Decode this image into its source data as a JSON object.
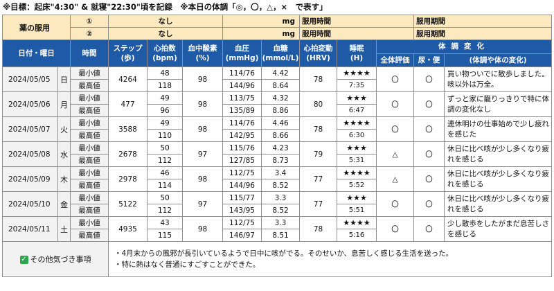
{
  "goal": "※目標：起床\"4:30\" & 就寝\"22:30\"頃を記録　※本日の体調「◎，〇，△，×　で表す」",
  "meds": {
    "label": "薬の服用",
    "rows": [
      {
        "num": "①",
        "name": "なし",
        "unit": "mg",
        "time_label": "服用時間",
        "period_label": "服用期間"
      },
      {
        "num": "②",
        "name": "なし",
        "unit": "mg",
        "time_label": "服用時間",
        "period_label": "服用期間"
      }
    ]
  },
  "headers": {
    "date": "日付・曜日",
    "time": "時間",
    "steps": "ステップ",
    "steps_unit": "(歩)",
    "hr": "心拍数",
    "hr_unit": "(bpm)",
    "spo2": "血中酸素",
    "spo2_unit": "(%)",
    "bp": "血圧",
    "bp_unit": "(mmHg)",
    "sugar": "血糖",
    "sugar_unit": "(mmol/L)",
    "hrv": "心拍変動",
    "hrv_unit": "(HRV)",
    "sleep": "睡眠",
    "sleep_unit": "(H)",
    "condition": "体調変化",
    "overall": "全体評価",
    "toilet": "尿・便",
    "notes": "(体調や体の変化)"
  },
  "min_label": "最小値",
  "max_label": "最高値",
  "days": [
    {
      "date": "2024/05/05",
      "dow": "日",
      "steps": "4264",
      "hr_min": "48",
      "hr_max": "118",
      "spo2": "98",
      "bp_min": "114/76",
      "bp_max": "144/96",
      "sugar_min": "4.42",
      "sugar_max": "8.64",
      "hrv": "78",
      "stars": "★★★★",
      "sleep": "7:35",
      "overall": "〇",
      "toilet": "〇",
      "note": "買い物ついでに散歩しました。咳以外は万全。"
    },
    {
      "date": "2024/05/06",
      "dow": "月",
      "steps": "477",
      "hr_min": "49",
      "hr_max": "96",
      "spo2": "98",
      "bp_min": "113/75",
      "bp_max": "135/89",
      "sugar_min": "4.32",
      "sugar_max": "8.86",
      "hrv": "80",
      "stars": "★★★",
      "sleep": "6:47",
      "overall": "〇",
      "toilet": "〇",
      "note": "ずっと家に籠りっきりで特に体調の変化なし"
    },
    {
      "date": "2024/05/07",
      "dow": "火",
      "steps": "3588",
      "hr_min": "49",
      "hr_max": "110",
      "spo2": "98",
      "bp_min": "114/76",
      "bp_max": "142/95",
      "sugar_min": "4.46",
      "sugar_max": "8.66",
      "hrv": "78",
      "stars": "★★★★",
      "sleep": "6:30",
      "overall": "〇",
      "toilet": "〇",
      "note": "連休明けの仕事始めで少し疲れを感じた"
    },
    {
      "date": "2024/05/08",
      "dow": "水",
      "steps": "2678",
      "hr_min": "50",
      "hr_max": "112",
      "spo2": "97",
      "bp_min": "115/76",
      "bp_max": "127/85",
      "sugar_min": "4.23",
      "sugar_max": "8.73",
      "hrv": "79",
      "stars": "★★★",
      "sleep": "5:31",
      "overall": "△",
      "toilet": "〇",
      "note": "休日に比べ咳が少し多くなり疲れを感じる"
    },
    {
      "date": "2024/05/09",
      "dow": "木",
      "steps": "2978",
      "hr_min": "46",
      "hr_max": "114",
      "spo2": "98",
      "bp_min": "112/75",
      "bp_max": "144/96",
      "sugar_min": "3.4",
      "sugar_max": "8.52",
      "hrv": "77",
      "stars": "★★★★",
      "sleep": "5:52",
      "overall": "△",
      "toilet": "〇",
      "note": "休日に比べ咳が少し多くなり疲れを感じる"
    },
    {
      "date": "2024/05/10",
      "dow": "金",
      "steps": "5122",
      "hr_min": "50",
      "hr_max": "112",
      "spo2": "97",
      "bp_min": "115/77",
      "bp_max": "143/95",
      "sugar_min": "3.3",
      "sugar_max": "8.52",
      "hrv": "77",
      "stars": "★★★",
      "sleep": "5:51",
      "overall": "〇",
      "toilet": "〇",
      "note": "休日に比べ咳が少し多くなり疲れを感じる"
    },
    {
      "date": "2024/05/11",
      "dow": "土",
      "steps": "4935",
      "hr_min": "43",
      "hr_max": "115",
      "spo2": "98",
      "bp_min": "112/75",
      "bp_max": "146/97",
      "sugar_min": "3.3",
      "sugar_max": "8.51",
      "hrv": "78",
      "stars": "★★★★",
      "sleep": "5:16",
      "overall": "〇",
      "toilet": "〇",
      "note": "少し散歩をしたがまだ息苦しさを感じる"
    }
  ],
  "other": {
    "label": "その他気づき事項",
    "line1": "・4月末からの風邪が長引いているようで日中に咳がでる。そのせいか、息苦しく感じる生活を送った。",
    "line2": "・特に熱はなく普通にすごすことができた。"
  },
  "colors": {
    "header_bg": "#1f5aa6",
    "med_bg": "#fde9c0",
    "check": "#2ea44f"
  }
}
